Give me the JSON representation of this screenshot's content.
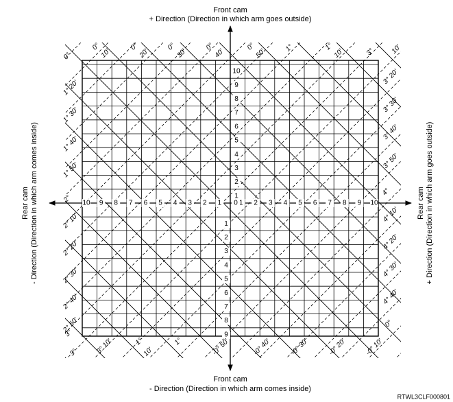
{
  "top_label": {
    "line1": "Front cam",
    "line2": "+ Direction (Direction in which arm goes outside)"
  },
  "bottom_label": {
    "line1": "Front cam",
    "line2": "- Direction (Direction in which arm comes inside)"
  },
  "left_label": {
    "line1": "Rear cam",
    "line2": "- Direction (Direction in which arm comes inside)"
  },
  "right_label": {
    "line1": "Rear cam",
    "line2": "+ Direction (Direction in which arm goes outside)"
  },
  "axis_labels": {
    "up": [
      "1",
      "2",
      "3",
      "4",
      "5",
      "6",
      "7",
      "8",
      "9",
      "10"
    ],
    "down": [
      "1",
      "2",
      "3",
      "4",
      "5",
      "6",
      "7",
      "8",
      "9"
    ],
    "left": [
      "1",
      "2",
      "3",
      "4",
      "5",
      "6",
      "7",
      "8",
      "9",
      "10"
    ],
    "right": [
      "1",
      "2",
      "3",
      "4",
      "5",
      "6",
      "7",
      "8",
      "9",
      "10"
    ],
    "center": "0"
  },
  "edge_labels": {
    "top": [
      "0°",
      "0°",
      "10'",
      "0°",
      "20'",
      "0°",
      "30'",
      "0°",
      "40'",
      "0°",
      "50'",
      "1°",
      "1°",
      "10'",
      "3°",
      "10'"
    ],
    "right": [
      "3° 20'",
      "3° 30'",
      "3° 40'",
      "3° 50'",
      "4°",
      "4° 10'",
      "4° 20'",
      "4° 30'",
      "4° 40'",
      "0°"
    ],
    "left": [
      "1° 20'",
      "1° 30'",
      "1° 40'",
      "1° 50'",
      "2°",
      "2° 10'",
      "2° 20'",
      "2° 30'",
      "2° 40'",
      "2° 50'",
      "3°"
    ],
    "bottom": [
      "3°",
      "3° 10'",
      "1°",
      "10'",
      "1°",
      "-0° 50'",
      "-0° 40'",
      "-0° 30'",
      "-0° 20'",
      "-0° 10'"
    ]
  },
  "figure_id": "RTWL3CLF000801"
}
